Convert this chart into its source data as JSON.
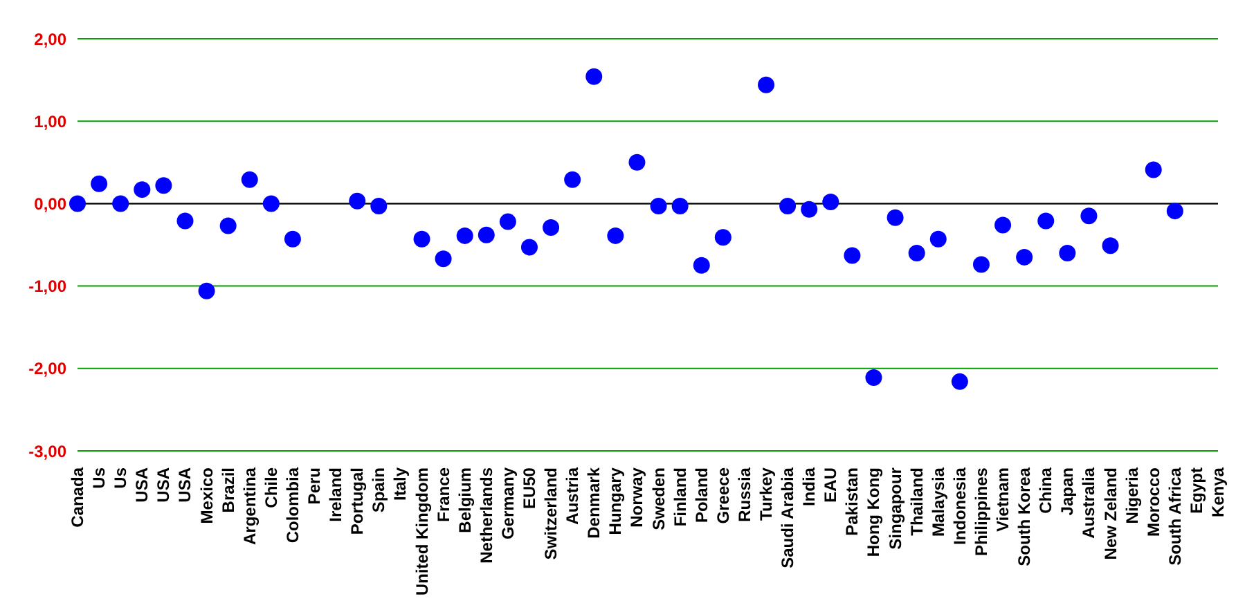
{
  "chart_data": {
    "type": "scatter",
    "categories": [
      "Canada",
      "Us",
      "Us",
      "USA",
      "USA",
      "USA",
      "Mexico",
      "Brazil",
      "Argentina",
      "Chile",
      "Colombia",
      "Peru",
      "Ireland",
      "Portugal",
      "Spain",
      "Italy",
      "United Kingdom",
      "France",
      "Belgium",
      "Netherlands",
      "Germany",
      "EU50",
      "Switzerland",
      "Austria",
      "Denmark",
      "Hungary",
      "Norway",
      "Sweden",
      "Finland",
      "Poland",
      "Greece",
      "Russia",
      "Turkey",
      "Saudi Arabia",
      "India",
      "EAU",
      "Pakistan",
      "Hong Kong",
      "Singapour",
      "Thailand",
      "Malaysia",
      "Indonesia",
      "Philippines",
      "Vietnam",
      "South Korea",
      "China",
      "Japan",
      "Australia",
      "New Zeland",
      "Nigeria",
      "Morocco",
      "South Africa",
      "Egypt",
      "Kenya"
    ],
    "values": [
      0.0,
      0.24,
      0.0,
      0.17,
      0.22,
      -0.21,
      -1.06,
      -0.27,
      0.29,
      0.0,
      -0.43,
      null,
      null,
      0.03,
      -0.03,
      null,
      -0.43,
      -0.67,
      -0.39,
      -0.38,
      -0.22,
      -0.53,
      -0.29,
      0.29,
      1.54,
      -0.39,
      0.5,
      -0.03,
      -0.03,
      -0.75,
      -0.41,
      null,
      1.44,
      -0.03,
      -0.07,
      0.02,
      -0.63,
      -2.11,
      -0.17,
      -0.6,
      -0.43,
      -2.16,
      -0.74,
      -0.26,
      -0.65,
      -0.21,
      -0.6,
      -0.15,
      -0.51,
      null,
      0.41,
      -0.09,
      null,
      null
    ],
    "color": "#0000ff",
    "marker": "circle",
    "ylim": [
      -3,
      2
    ],
    "yticks": [
      {
        "value": -3,
        "label": "-3,00"
      },
      {
        "value": -2,
        "label": "-2,00"
      },
      {
        "value": -1,
        "label": "-1,00"
      },
      {
        "value": 0,
        "label": "0,00"
      },
      {
        "value": 1,
        "label": "1,00"
      },
      {
        "value": 2,
        "label": "2,00"
      }
    ],
    "grid": "y",
    "ref_lines": [
      {
        "axis": "y",
        "value": 0,
        "color": "#000000"
      }
    ],
    "legend": false
  }
}
